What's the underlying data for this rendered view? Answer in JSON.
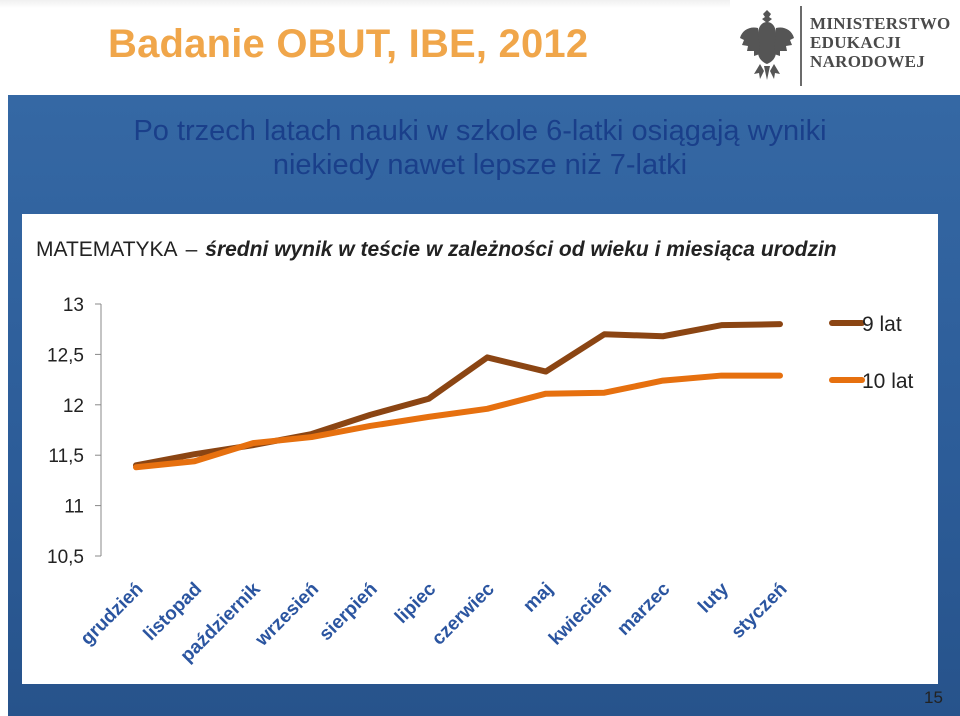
{
  "slide_header": "Badanie OBUT, IBE, 2012",
  "logo": {
    "lines": [
      "MINISTERSTWO",
      "EDUKACJI",
      "NARODOWEJ"
    ],
    "icon": "eagle-emblem-icon"
  },
  "title": {
    "line1": "Po trzech latach nauki w szkole 6-latki osiągają wyniki",
    "line2": "niekiedy nawet lepsze niż 7-latki"
  },
  "chart_title": {
    "subject": "MATEMATYKA",
    "dash": "–",
    "subtitle": "średni wynik w teście w zależności od wieku i miesiąca urodzin"
  },
  "page_number": "15",
  "colors": {
    "header": "#f0a64a",
    "panel": "#2f609c",
    "series_9": "#8b4513",
    "series_10": "#e6700f"
  },
  "chart_data": {
    "type": "line",
    "categories": [
      "grudzień",
      "listopad",
      "październik",
      "wrzesień",
      "sierpień",
      "lipiec",
      "czerwiec",
      "maj",
      "kwiecień",
      "marzec",
      "luty",
      "styczeń"
    ],
    "ylim": [
      10.5,
      13
    ],
    "yticks": [
      "13",
      "12,5",
      "12",
      "11,5",
      "11",
      "10,5"
    ],
    "ytick_values": [
      13,
      12.5,
      12,
      11.5,
      11,
      10.5
    ],
    "grid": false,
    "legend": "right",
    "series": [
      {
        "name": "9 lat",
        "color": "#8b4513",
        "values": [
          11.4,
          11.51,
          11.6,
          11.71,
          11.9,
          12.06,
          12.47,
          12.33,
          12.7,
          12.68,
          12.79,
          12.8
        ]
      },
      {
        "name": "10 lat",
        "color": "#e6700f",
        "values": [
          11.38,
          11.44,
          11.62,
          11.68,
          11.79,
          11.88,
          11.96,
          12.11,
          12.12,
          12.24,
          12.29,
          12.29
        ]
      }
    ]
  }
}
